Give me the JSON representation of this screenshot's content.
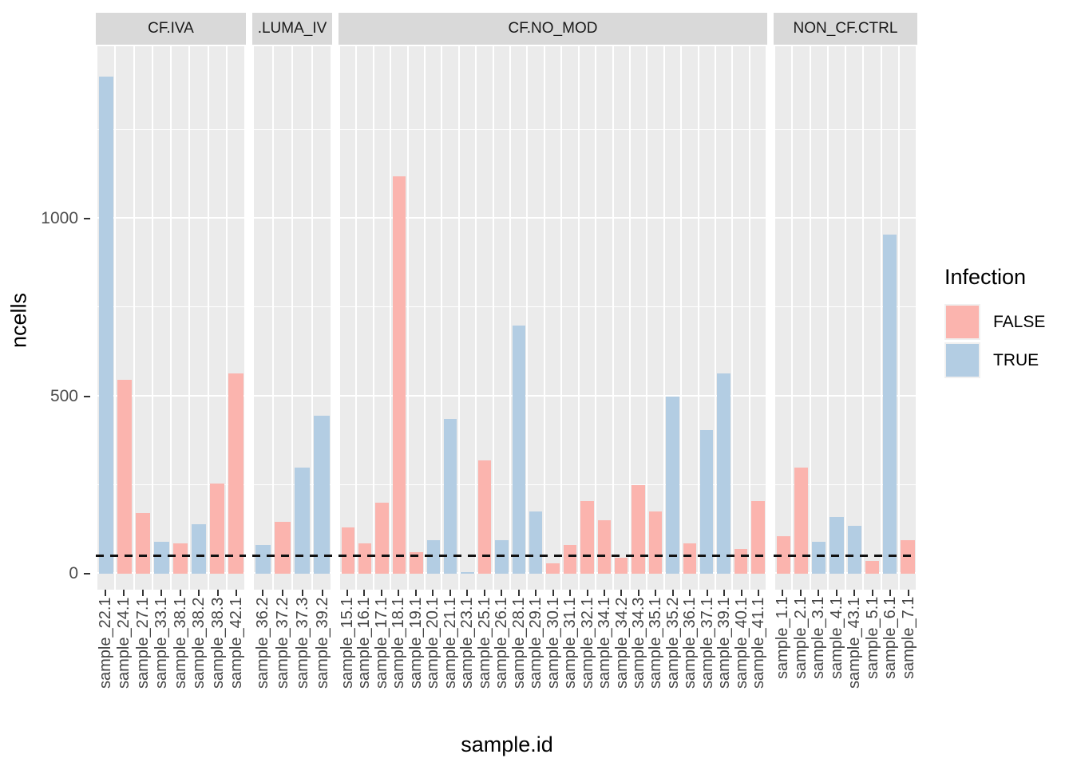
{
  "axes": {
    "y": {
      "label": "ncells",
      "ticks": [
        0,
        500,
        1000
      ]
    },
    "x": {
      "label": "sample.id"
    }
  },
  "legend": {
    "title": "Infection",
    "items": [
      {
        "label": "FALSE",
        "color": "#FBB4AE"
      },
      {
        "label": "TRUE",
        "color": "#B3CDE3"
      }
    ]
  },
  "colors": {
    "false_fill": "#FBB4AE",
    "true_fill": "#B3CDE3",
    "panel_bg": "#EBEBEB",
    "strip_bg": "#D9D9D9",
    "gridline": "#FFFFFF",
    "axis_text": "#4D4D4D",
    "reference_line": "#111111"
  },
  "reference_line": {
    "y": 50,
    "style": "dashed"
  },
  "chart_data": {
    "type": "bar",
    "title": "",
    "xlabel": "sample.id",
    "ylabel": "ncells",
    "ylim": [
      0,
      1480
    ],
    "grid": true,
    "legend_position": "right",
    "series_key": "Infection",
    "facets": [
      {
        "label": "CF.IVA",
        "bars": [
          {
            "sample": "sample_22.1",
            "value": 1400,
            "infection": "TRUE"
          },
          {
            "sample": "sample_24.1",
            "value": 545,
            "infection": "FALSE"
          },
          {
            "sample": "sample_27.1",
            "value": 170,
            "infection": "FALSE"
          },
          {
            "sample": "sample_33.1",
            "value": 90,
            "infection": "TRUE"
          },
          {
            "sample": "sample_38.1",
            "value": 85,
            "infection": "FALSE"
          },
          {
            "sample": "sample_38.2",
            "value": 140,
            "infection": "TRUE"
          },
          {
            "sample": "sample_38.3",
            "value": 255,
            "infection": "FALSE"
          },
          {
            "sample": "sample_42.1",
            "value": 565,
            "infection": "FALSE"
          }
        ]
      },
      {
        "label": ".LUMA_IV",
        "bars": [
          {
            "sample": "sample_36.2",
            "value": 80,
            "infection": "TRUE"
          },
          {
            "sample": "sample_37.2",
            "value": 145,
            "infection": "FALSE"
          },
          {
            "sample": "sample_37.3",
            "value": 300,
            "infection": "TRUE"
          },
          {
            "sample": "sample_39.2",
            "value": 445,
            "infection": "TRUE"
          }
        ]
      },
      {
        "label": "CF.NO_MOD",
        "bars": [
          {
            "sample": "sample_15.1",
            "value": 130,
            "infection": "FALSE"
          },
          {
            "sample": "sample_16.1",
            "value": 85,
            "infection": "FALSE"
          },
          {
            "sample": "sample_17.1",
            "value": 200,
            "infection": "FALSE"
          },
          {
            "sample": "sample_18.1",
            "value": 1120,
            "infection": "FALSE"
          },
          {
            "sample": "sample_19.1",
            "value": 60,
            "infection": "FALSE"
          },
          {
            "sample": "sample_20.1",
            "value": 95,
            "infection": "TRUE"
          },
          {
            "sample": "sample_21.1",
            "value": 435,
            "infection": "TRUE"
          },
          {
            "sample": "sample_23.1",
            "value": 5,
            "infection": "TRUE"
          },
          {
            "sample": "sample_25.1",
            "value": 320,
            "infection": "FALSE"
          },
          {
            "sample": "sample_26.1",
            "value": 95,
            "infection": "TRUE"
          },
          {
            "sample": "sample_28.1",
            "value": 700,
            "infection": "TRUE"
          },
          {
            "sample": "sample_29.1",
            "value": 175,
            "infection": "TRUE"
          },
          {
            "sample": "sample_30.1",
            "value": 30,
            "infection": "FALSE"
          },
          {
            "sample": "sample_31.1",
            "value": 80,
            "infection": "FALSE"
          },
          {
            "sample": "sample_32.1",
            "value": 205,
            "infection": "FALSE"
          },
          {
            "sample": "sample_34.1",
            "value": 150,
            "infection": "FALSE"
          },
          {
            "sample": "sample_34.2",
            "value": 45,
            "infection": "FALSE"
          },
          {
            "sample": "sample_34.3",
            "value": 250,
            "infection": "FALSE"
          },
          {
            "sample": "sample_35.1",
            "value": 175,
            "infection": "FALSE"
          },
          {
            "sample": "sample_35.2",
            "value": 500,
            "infection": "TRUE"
          },
          {
            "sample": "sample_36.1",
            "value": 85,
            "infection": "FALSE"
          },
          {
            "sample": "sample_37.1",
            "value": 405,
            "infection": "TRUE"
          },
          {
            "sample": "sample_39.1",
            "value": 565,
            "infection": "TRUE"
          },
          {
            "sample": "sample_40.1",
            "value": 70,
            "infection": "FALSE"
          },
          {
            "sample": "sample_41.1",
            "value": 205,
            "infection": "FALSE"
          }
        ]
      },
      {
        "label": "NON_CF.CTRL",
        "bars": [
          {
            "sample": "sample_1.1",
            "value": 105,
            "infection": "FALSE"
          },
          {
            "sample": "sample_2.1",
            "value": 300,
            "infection": "FALSE"
          },
          {
            "sample": "sample_3.1",
            "value": 90,
            "infection": "TRUE"
          },
          {
            "sample": "sample_4.1",
            "value": 160,
            "infection": "TRUE"
          },
          {
            "sample": "sample_43.1",
            "value": 135,
            "infection": "TRUE"
          },
          {
            "sample": "sample_5.1",
            "value": 35,
            "infection": "FALSE"
          },
          {
            "sample": "sample_6.1",
            "value": 955,
            "infection": "TRUE"
          },
          {
            "sample": "sample_7.1",
            "value": 95,
            "infection": "FALSE"
          }
        ]
      }
    ]
  }
}
